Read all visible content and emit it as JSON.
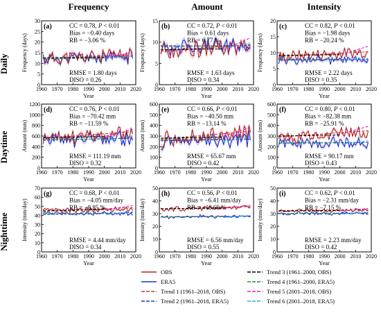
{
  "column_titles": [
    "Frequency",
    "Amount",
    "Intensity"
  ],
  "row_titles": [
    "Daily",
    "Daytime",
    "Nighttime"
  ],
  "x_axis": {
    "label": "Year",
    "range": [
      1960,
      2020
    ],
    "ticks": [
      1960,
      1970,
      1980,
      1990,
      2000,
      2010,
      2020
    ]
  },
  "colors": {
    "obs": "#b22222",
    "era5": "#1e2fd6",
    "trend1": "#c0392b",
    "trend2": "#1f3bd1",
    "trend3": "#000000",
    "trend4": "#2e8b2e",
    "trend5": "#cc22cc",
    "trend6": "#28b0d0",
    "band_obs": "#f3b7bf",
    "band_era5": "#b5b5ee"
  },
  "legend": {
    "entries": [
      {
        "label": "OBS",
        "key": "obs",
        "style": "solid"
      },
      {
        "label": "ERA5",
        "key": "era5",
        "style": "solid"
      },
      {
        "label": "Trend 1 (1961–2018, OBS)",
        "key": "trend1",
        "style": "dashed"
      },
      {
        "label": "Trend 2 (1961–2018, ERA5)",
        "key": "trend2",
        "style": "dashed"
      },
      {
        "label": "Trend 3 (1961–2000, OBS)",
        "key": "trend3",
        "style": "dashed"
      },
      {
        "label": "Trend 4 (1961–2000, ERA5)",
        "key": "trend4",
        "style": "dashed"
      },
      {
        "label": "Trend 5 (2001–2018, OBS)",
        "key": "trend5",
        "style": "dashed"
      },
      {
        "label": "Trend 6 (2001–2018, ERA5)",
        "key": "trend6",
        "style": "dashed"
      }
    ]
  },
  "chart_data": [
    {
      "type": "line",
      "panel": "(a)",
      "ylabel": "Frequency (days)",
      "ylim": [
        0,
        30
      ],
      "yticks": [
        0,
        5,
        10,
        15,
        20,
        25,
        30
      ],
      "stats_top": [
        {
          "label": "CC = 0.78, ",
          "em": "P",
          "tail": " < 0.01"
        },
        {
          "label": "Bias = −0.40 days"
        },
        {
          "label": "RB = −3.06 %"
        }
      ],
      "stats_bottom": [
        "RMSE = 1.80 days",
        "DISO = 0.26"
      ],
      "obs_mean": 13,
      "obs_amp": 3.2,
      "obs_slope": 0.03,
      "era5_mean": 12.6,
      "era5_amp": 3.6,
      "era5_slope": 0.02,
      "seed": 11,
      "trends": {
        "trend1": [
          12.3,
          14.0
        ],
        "trend2": [
          12.0,
          13.3
        ],
        "trend3": [
          12.6,
          12.8
        ],
        "trend4": [
          12.2,
          12.5
        ],
        "trend5": [
          12.5,
          15.2
        ],
        "trend6": [
          12.2,
          13.6
        ]
      }
    },
    {
      "type": "line",
      "panel": "(d)",
      "ylabel": "Amount (mm)",
      "ylim": [
        0,
        1200
      ],
      "yticks": [
        0,
        200,
        400,
        600,
        800,
        1000,
        1200
      ],
      "stats_top": [
        {
          "label": "CC = 0.76, ",
          "em": "P",
          "tail": " < 0.01"
        },
        {
          "label": "Bias = −70.42 mm"
        },
        {
          "label": "RB = −11.59 %"
        }
      ],
      "stats_bottom": [
        "RMSE = 111.19 mm",
        "DISO = 0.32"
      ],
      "obs_mean": 600,
      "obs_amp": 130,
      "obs_slope": 2.0,
      "era5_mean": 540,
      "era5_amp": 150,
      "era5_slope": 0.5,
      "seed": 23,
      "trends": {
        "trend1": [
          560,
          680
        ],
        "trend2": [
          520,
          560
        ],
        "trend3": [
          570,
          590
        ],
        "trend4": [
          530,
          545
        ],
        "trend5": [
          600,
          720
        ],
        "trend6": [
          520,
          600
        ]
      }
    },
    {
      "type": "line",
      "panel": "(g)",
      "ylabel": "Intensity (mm/day)",
      "ylim": [
        0,
        70
      ],
      "yticks": [
        0,
        10,
        20,
        30,
        40,
        50,
        60,
        70
      ],
      "stats_top": [
        {
          "label": "CC = 0.68, ",
          "em": "P",
          "tail": " < 0.01"
        },
        {
          "label": "Bias = −4.05 mm/day"
        },
        {
          "label": "RB = −8.85 %"
        }
      ],
      "stats_bottom": [
        "RMSE = 4.44 mm/day",
        "DISO = 0.34"
      ],
      "obs_mean": 46,
      "obs_amp": 3,
      "obs_slope": 0.05,
      "era5_mean": 42,
      "era5_amp": 2.5,
      "era5_slope": 0.02,
      "seed": 37,
      "trends": {
        "trend1": [
          44.5,
          48.5
        ],
        "trend2": [
          41,
          43
        ],
        "trend3": [
          45,
          46.5
        ],
        "trend4": [
          41.5,
          42.5
        ],
        "trend5": [
          46,
          51
        ],
        "trend6": [
          41,
          44
        ]
      }
    },
    {
      "type": "line",
      "panel": "(b)",
      "ylabel": "Frequency (days)",
      "ylim": [
        0,
        15
      ],
      "yticks": [
        0,
        5,
        10,
        15
      ],
      "stats_top": [
        {
          "label": "CC = 0.72, ",
          "em": "P",
          "tail": " < 0.01"
        },
        {
          "label": "Bias = 0.61 days"
        },
        {
          "label": "RB = 6.77 %"
        }
      ],
      "stats_bottom": [
        "RMSE = 1.63 days",
        "DISO = 0.34"
      ],
      "obs_mean": 8.5,
      "obs_amp": 2.0,
      "obs_slope": 0.02,
      "era5_mean": 9.0,
      "era5_amp": 2.3,
      "era5_slope": 0.0,
      "seed": 53,
      "trends": {
        "trend1": [
          7.9,
          9.4
        ],
        "trend2": [
          9.0,
          9.2
        ],
        "trend3": [
          8.2,
          8.4
        ],
        "trend4": [
          9.2,
          9.0
        ],
        "trend5": [
          8.2,
          11.0
        ],
        "trend6": [
          8.6,
          9.8
        ]
      }
    },
    {
      "type": "line",
      "panel": "(e)",
      "ylabel": "Amount (mm)",
      "ylim": [
        0,
        600
      ],
      "yticks": [
        0,
        100,
        200,
        300,
        400,
        500,
        600
      ],
      "stats_top": [
        {
          "label": "CC = 0.66, ",
          "em": "P",
          "tail": " < 0.01"
        },
        {
          "label": "Bias = −40.50 mm"
        },
        {
          "label": "RB = −13.14 %"
        }
      ],
      "stats_bottom": [
        "RMSE = 65.67 mm",
        "DISO = 0.42"
      ],
      "obs_mean": 300,
      "obs_amp": 75,
      "obs_slope": 1.2,
      "era5_mean": 265,
      "era5_amp": 80,
      "era5_slope": 0.2,
      "seed": 71,
      "trends": {
        "trend1": [
          270,
          345
        ],
        "trend2": [
          255,
          270
        ],
        "trend3": [
          280,
          290
        ],
        "trend4": [
          262,
          268
        ],
        "trend5": [
          300,
          380
        ],
        "trend6": [
          250,
          290
        ]
      }
    },
    {
      "type": "line",
      "panel": "(h)",
      "ylabel": "Intensity (mm/day)",
      "ylim": [
        0,
        50
      ],
      "yticks": [
        0,
        10,
        20,
        30,
        40,
        50
      ],
      "stats_top": [
        {
          "label": "CC = 0.56, ",
          "em": "P",
          "tail": " < 0.01"
        },
        {
          "label": "Bias = −6.41 mm/day"
        },
        {
          "label": "RB = −18.69 %"
        }
      ],
      "stats_bottom": [
        "RMSE = 6.56 mm/day",
        "DISO = 0.55"
      ],
      "obs_mean": 34,
      "obs_amp": 1.8,
      "obs_slope": 0.02,
      "era5_mean": 27.5,
      "era5_amp": 1.6,
      "era5_slope": 0.0,
      "seed": 89,
      "trends": {
        "trend1": [
          33.5,
          35.5
        ],
        "trend2": [
          27.3,
          28.0
        ],
        "trend3": [
          33.8,
          34.3
        ],
        "trend4": [
          27.4,
          27.8
        ],
        "trend5": [
          34,
          36.5
        ],
        "trend6": [
          27,
          28.5
        ]
      }
    },
    {
      "type": "line",
      "panel": "(c)",
      "ylabel": "Frequency (days)",
      "ylim": [
        0,
        20
      ],
      "yticks": [
        0,
        5,
        10,
        15,
        20
      ],
      "stats_top": [
        {
          "label": "CC = 0.82, ",
          "em": "P",
          "tail": " < 0.01"
        },
        {
          "label": "Bias = −1.98 days"
        },
        {
          "label": "RB = −20.24 %"
        }
      ],
      "stats_bottom": [
        "RMSE = 2.22 days",
        "DISO = 0.35"
      ],
      "obs_mean": 9.5,
      "obs_amp": 1.8,
      "obs_slope": 0.025,
      "era5_mean": 7.8,
      "era5_amp": 1.8,
      "era5_slope": 0.0,
      "seed": 101,
      "trends": {
        "trend1": [
          8.8,
          10.3
        ],
        "trend2": [
          7.7,
          7.9
        ],
        "trend3": [
          9.2,
          9.4
        ],
        "trend4": [
          7.8,
          7.9
        ],
        "trend5": [
          9.5,
          12.0
        ],
        "trend6": [
          7.5,
          8.3
        ]
      }
    },
    {
      "type": "line",
      "panel": "(f)",
      "ylabel": "Amount (mm)",
      "ylim": [
        0,
        600
      ],
      "yticks": [
        0,
        100,
        200,
        300,
        400,
        500,
        600
      ],
      "stats_top": [
        {
          "label": "CC = 0.80, ",
          "em": "P",
          "tail": " < 0.01"
        },
        {
          "label": "Bias = −82.38 mm"
        },
        {
          "label": "RB = −25.91 %"
        }
      ],
      "stats_bottom": [
        "RMSE = 90.17 mm",
        "DISO = 0.43"
      ],
      "obs_mean": 310,
      "obs_amp": 60,
      "obs_slope": 1.0,
      "era5_mean": 235,
      "era5_amp": 55,
      "era5_slope": 0.1,
      "seed": 131,
      "trends": {
        "trend1": [
          290,
          350
        ],
        "trend2": [
          232,
          240
        ],
        "trend3": [
          300,
          310
        ],
        "trend4": [
          235,
          238
        ],
        "trend5": [
          320,
          390
        ],
        "trend6": [
          225,
          255
        ]
      }
    },
    {
      "type": "line",
      "panel": "(i)",
      "ylabel": "Intensity (mm/day)",
      "ylim": [
        0,
        50
      ],
      "yticks": [
        0,
        10,
        20,
        30,
        40,
        50
      ],
      "stats_top": [
        {
          "label": "CC = 0.62, ",
          "em": "P",
          "tail": " < 0.01"
        },
        {
          "label": "Bias = −2.31 mm/day"
        },
        {
          "label": "RB = −7.15 %"
        }
      ],
      "stats_bottom": [
        "RMSE = 2.23 mm/day",
        "DISO = 0.42"
      ],
      "obs_mean": 32.5,
      "obs_amp": 1.4,
      "obs_slope": 0.01,
      "era5_mean": 30.2,
      "era5_amp": 1.4,
      "era5_slope": 0.0,
      "seed": 151,
      "trends": {
        "trend1": [
          32.0,
          33.0
        ],
        "trend2": [
          30.0,
          30.4
        ],
        "trend3": [
          32.2,
          32.4
        ],
        "trend4": [
          30.1,
          30.3
        ],
        "trend5": [
          32.2,
          34.0
        ],
        "trend6": [
          29.8,
          31.0
        ]
      }
    }
  ]
}
